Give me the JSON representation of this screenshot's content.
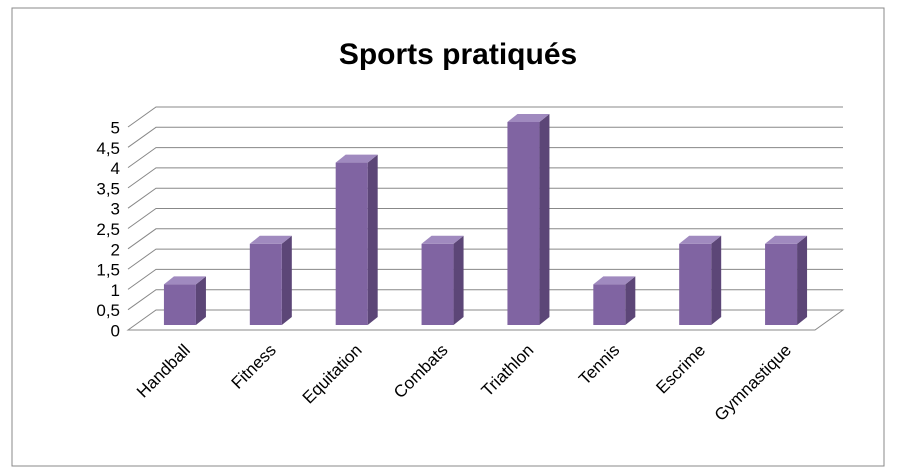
{
  "chart_data": {
    "type": "bar",
    "title": "Sports pratiqués",
    "categories": [
      "Handball",
      "Fitness",
      "Equitation",
      "Combats",
      "Triathlon",
      "Tennis",
      "Escrime",
      "Gymnastique"
    ],
    "values": [
      1,
      2,
      4,
      2,
      5,
      1,
      2,
      2
    ],
    "color": "#8064a2",
    "ylim": [
      0,
      5
    ],
    "yticks": [
      0,
      {
        "value": 0.5,
        "label": "0,5"
      },
      1,
      {
        "value": 1.5,
        "label": "1,5"
      },
      2,
      {
        "value": 2.5,
        "label": "2,5"
      },
      3,
      {
        "value": 3.5,
        "label": "3,5"
      },
      4,
      {
        "value": 4.5,
        "label": "4,5"
      },
      5
    ],
    "grid": true
  }
}
